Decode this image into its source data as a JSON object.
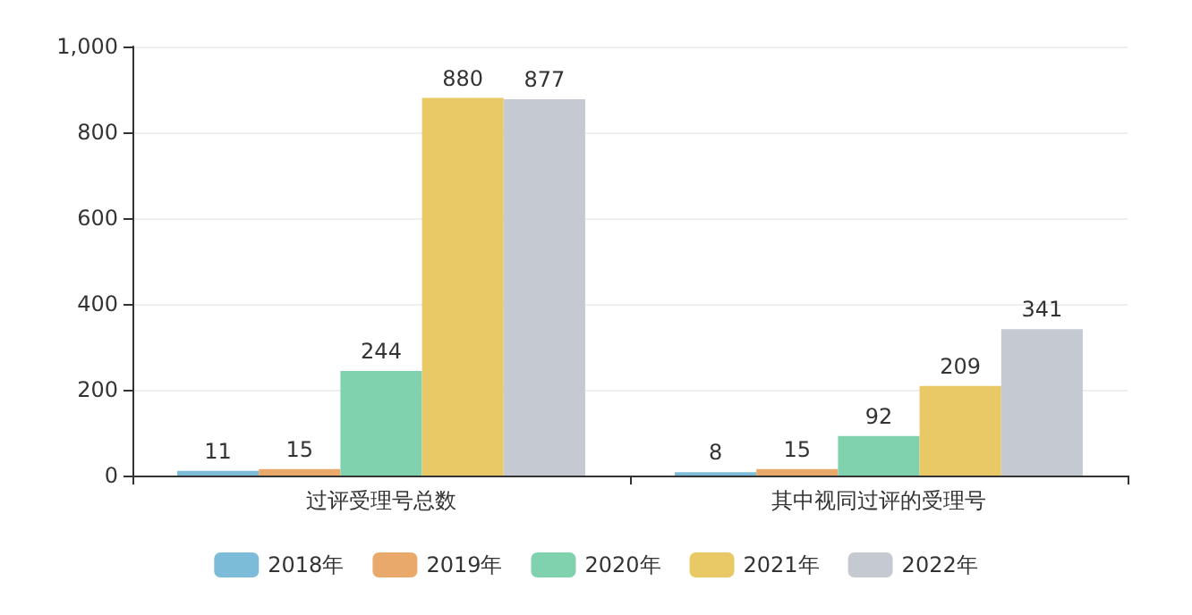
{
  "chart_data": {
    "type": "bar",
    "categories": [
      "过评受理号总数",
      "其中视同过评的受理号"
    ],
    "series": [
      {
        "name": "2018年",
        "color": "#7dbcd9",
        "values": [
          11,
          8
        ]
      },
      {
        "name": "2019年",
        "color": "#e9a96b",
        "values": [
          15,
          15
        ]
      },
      {
        "name": "2020年",
        "color": "#80d1ad",
        "values": [
          244,
          92
        ]
      },
      {
        "name": "2021年",
        "color": "#e9c965",
        "values": [
          880,
          209
        ]
      },
      {
        "name": "2022年",
        "color": "#c5c9d2",
        "values": [
          877,
          341
        ]
      }
    ],
    "ylim": [
      0,
      1000
    ],
    "yticks": [
      {
        "value": 0,
        "label": "0"
      },
      {
        "value": 200,
        "label": "200"
      },
      {
        "value": 400,
        "label": "400"
      },
      {
        "value": 600,
        "label": "600"
      },
      {
        "value": 800,
        "label": "800"
      },
      {
        "value": 1000,
        "label": "1,000"
      }
    ],
    "grid": "y",
    "legend": "bottom",
    "data_labels": true
  }
}
